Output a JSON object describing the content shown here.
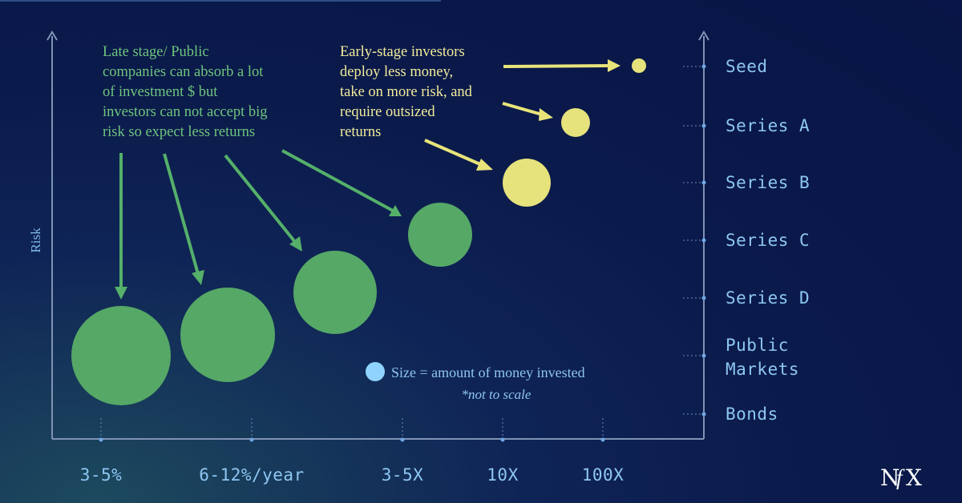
{
  "colors": {
    "late_stage": "#55a866",
    "early_stage": "#e6e27c",
    "legend_dot": "#8fd3ff",
    "axis": "#7f93b4"
  },
  "chart_data": {
    "type": "scatter",
    "xlabel": "",
    "ylabel": "Risk",
    "x_ticks": [
      "3-5%",
      "6-12%/year",
      "3-5X",
      "10X",
      "100X"
    ],
    "y_ticks": [
      "Seed",
      "Series A",
      "Series B",
      "Series C",
      "Series D",
      "Public Markets",
      "Bonds"
    ],
    "bubbles": [
      {
        "x": "3-5%",
        "y": "Bonds",
        "size": 62,
        "group": "late_stage"
      },
      {
        "x": "6-12%/year",
        "y": "Public Markets",
        "size": 59,
        "group": "late_stage"
      },
      {
        "x": "3-5X",
        "y": "Series D",
        "size": 52,
        "group": "late_stage"
      },
      {
        "x": "10X",
        "y": "Series C",
        "size": 40,
        "group": "late_stage"
      },
      {
        "x": "10X",
        "y": "Series B",
        "size": 30,
        "group": "early_stage"
      },
      {
        "x": "100X",
        "y": "Series A",
        "size": 18,
        "group": "early_stage"
      },
      {
        "x": "100X",
        "y": "Seed",
        "size": 9,
        "group": "early_stage"
      }
    ],
    "annotations": {
      "late_stage": [
        "Late stage/ Public",
        "companies can absorb a lot",
        "of investment $ but",
        "investors can not accept big",
        "risk so expect less returns"
      ],
      "early_stage": [
        "Early-stage investors",
        "deploy less money,",
        "take on more risk, and",
        "require outsized",
        "returns"
      ]
    },
    "legend": {
      "label": "Size = amount of money invested",
      "note": "*not to scale"
    },
    "grid": false
  },
  "brand": {
    "logo_text": "NfX"
  }
}
